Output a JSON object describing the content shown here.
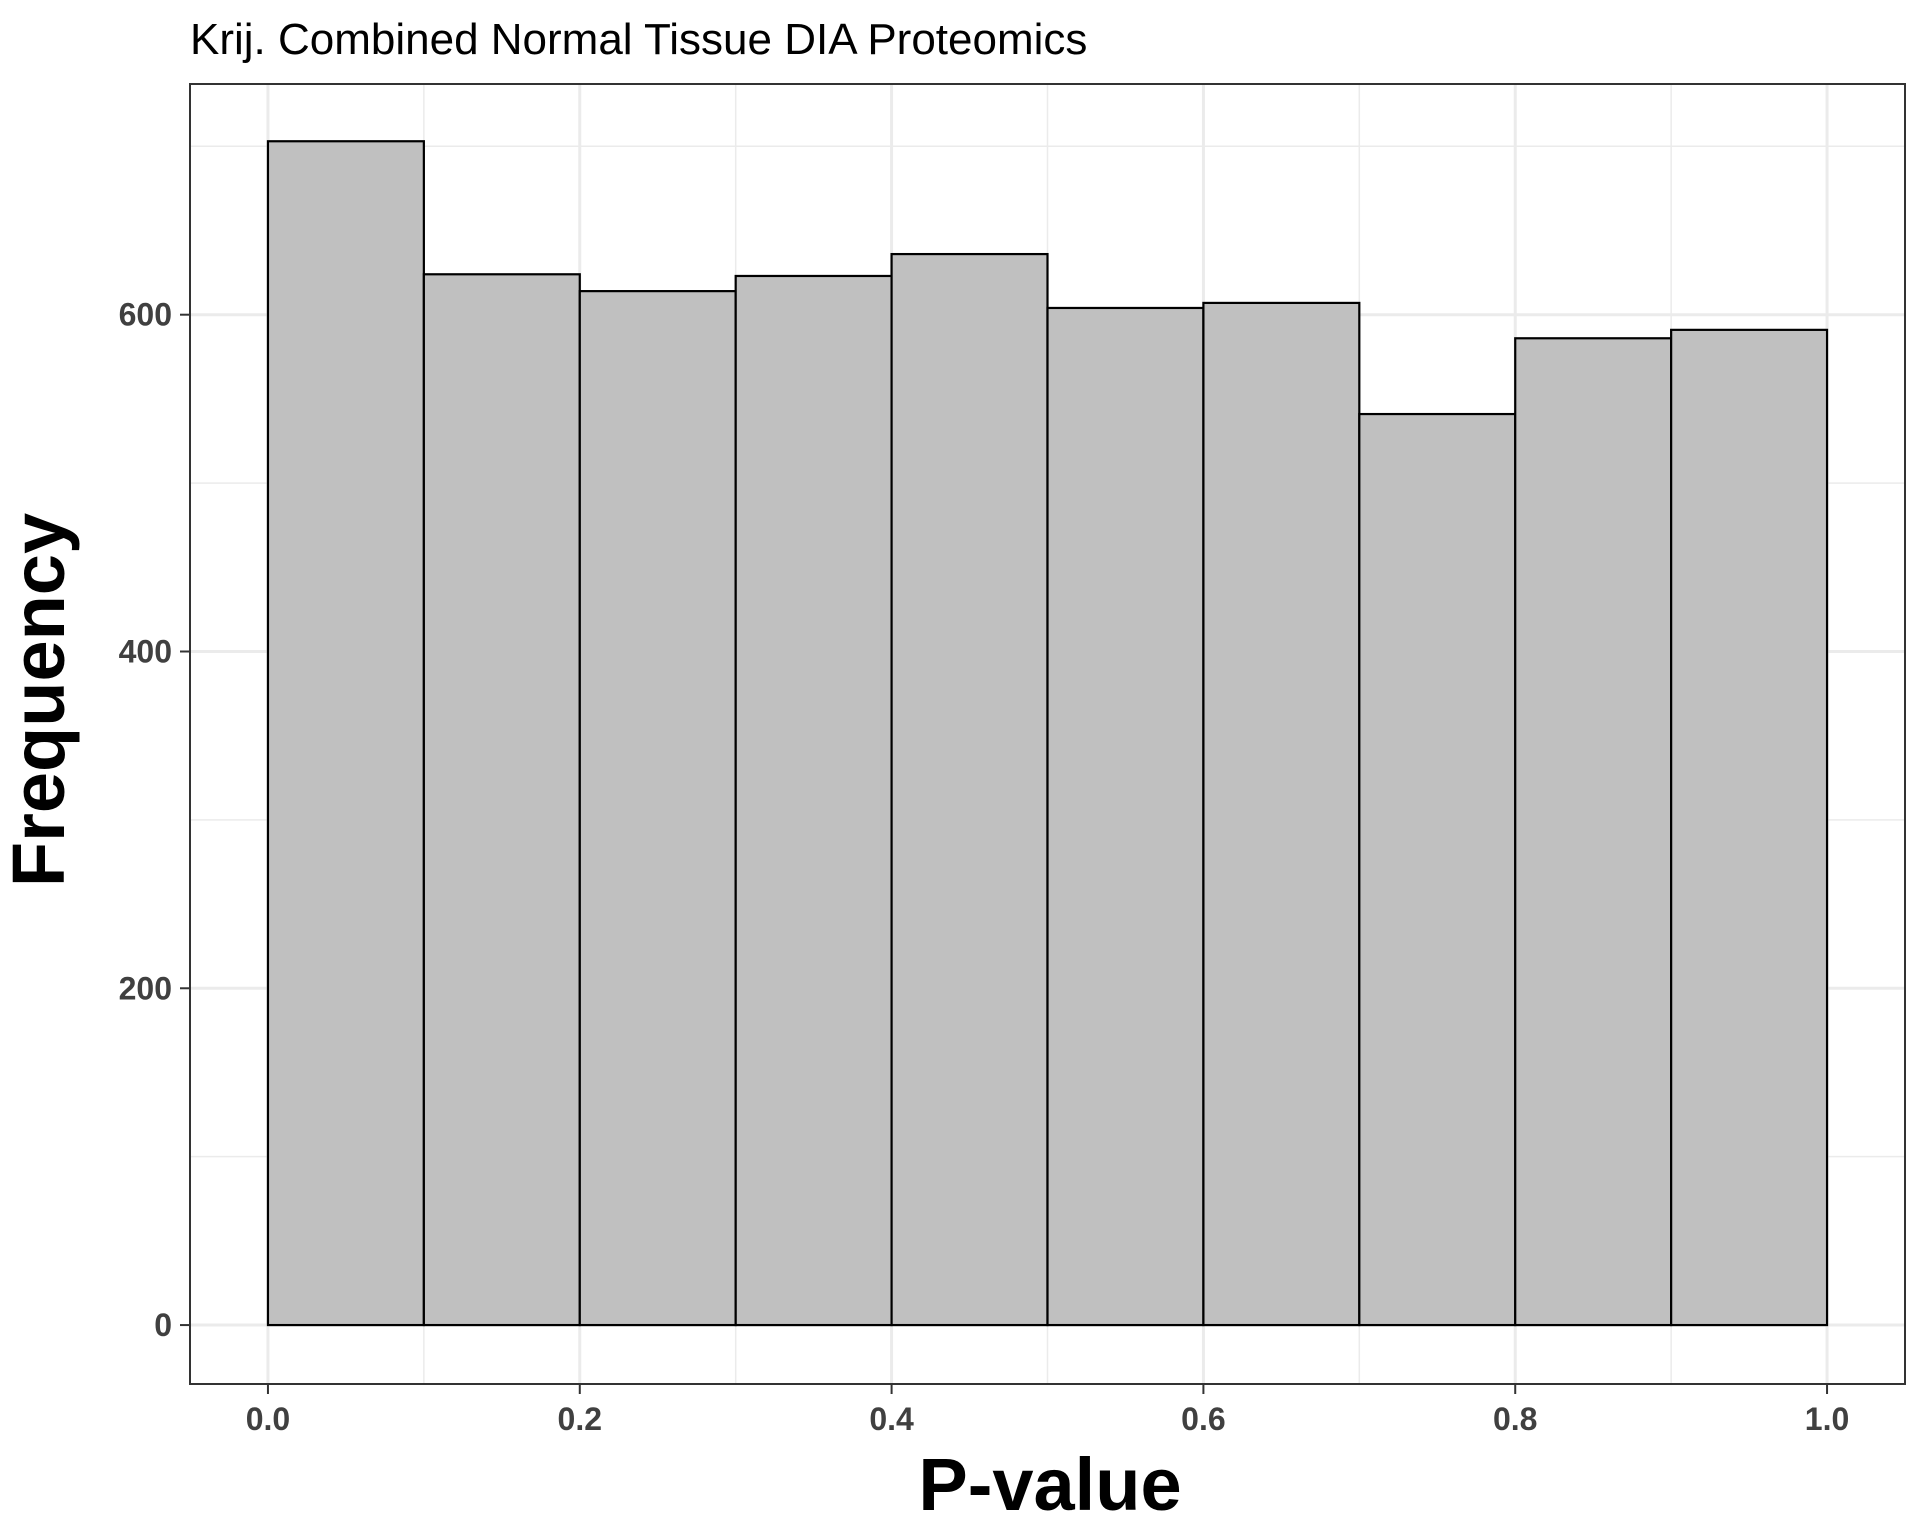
{
  "chart_data": {
    "type": "bar",
    "title": "Krij. Combined Normal Tissue DIA Proteomics",
    "xlabel": "P-value",
    "ylabel": "Frequency",
    "bin_edges": [
      0.0,
      0.1,
      0.2,
      0.3,
      0.4,
      0.5,
      0.6,
      0.7,
      0.8,
      0.9,
      1.0
    ],
    "values": [
      703,
      624,
      614,
      623,
      636,
      604,
      607,
      541,
      586,
      591
    ],
    "xlim": [
      -0.05,
      1.05
    ],
    "ylim": [
      -35,
      737
    ],
    "x_ticks": [
      0.0,
      0.2,
      0.4,
      0.6,
      0.8,
      1.0
    ],
    "x_tick_labels": [
      "0.0",
      "0.2",
      "0.4",
      "0.6",
      "0.8",
      "1.0"
    ],
    "y_ticks": [
      0,
      200,
      400,
      600
    ],
    "y_tick_labels": [
      "0",
      "200",
      "400",
      "600"
    ],
    "grid": true,
    "bar_fill": "#c0c0c0",
    "bar_edge": "#000000"
  }
}
